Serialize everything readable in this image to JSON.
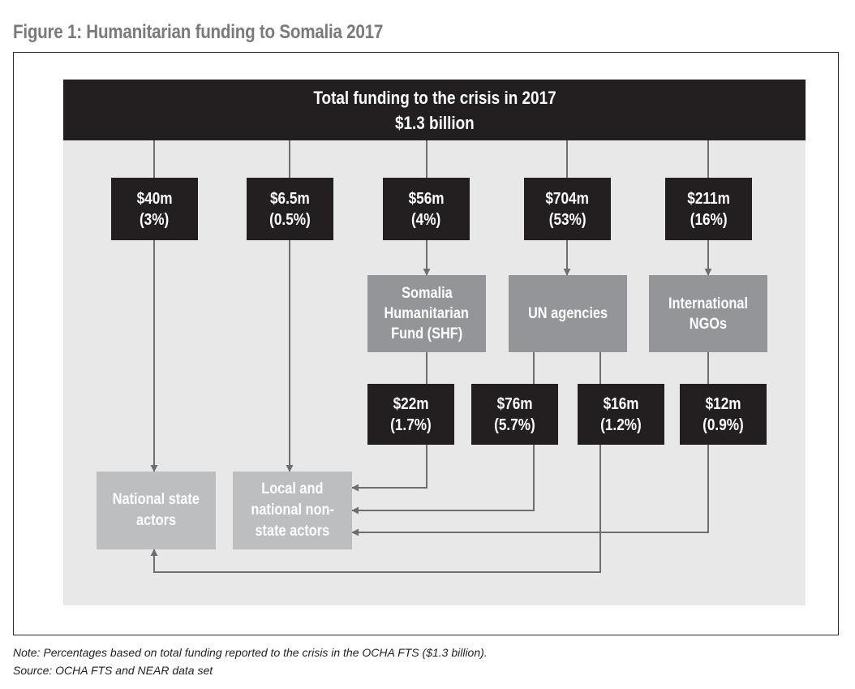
{
  "figure_title": "Figure 1: Humanitarian funding to Somalia 2017",
  "header": {
    "line1": "Total funding to the crisis in 2017",
    "line2": "$1.3 billion"
  },
  "funding_boxes": [
    {
      "amount": "$40m",
      "share": "(3%)"
    },
    {
      "amount": "$6.5m",
      "share": "(0.5%)"
    },
    {
      "amount": "$56m",
      "share": "(4%)"
    },
    {
      "amount": "$704m",
      "share": "(53%)"
    },
    {
      "amount": "$211m",
      "share": "(16%)"
    }
  ],
  "intermediaries": {
    "shf": [
      "Somalia",
      "Humanitarian",
      "Fund (SHF)"
    ],
    "un": [
      "UN agencies"
    ],
    "ngos": [
      "International",
      "NGOs"
    ]
  },
  "sub_funding_boxes": [
    {
      "amount": "$22m",
      "share": "(1.7%)"
    },
    {
      "amount": "$76m",
      "share": "(5.7%)"
    },
    {
      "amount": "$16m",
      "share": "(1.2%)"
    },
    {
      "amount": "$12m",
      "share": "(0.9%)"
    }
  ],
  "recipients": {
    "national_state": [
      "National state",
      "actors"
    ],
    "local_nonstate": [
      "Local and",
      "national non-",
      "state actors"
    ]
  },
  "note": "Note: Percentages based on total funding reported to the crisis in the OCHA FTS ($1.3 billion).",
  "source": "Source: OCHA FTS and NEAR data set",
  "colors": {
    "dark": "#231f20",
    "mid_grey": "#939598",
    "light_grey": "#bdbec0",
    "panel": "#e8e8e8",
    "arrow": "#6d6e71"
  }
}
